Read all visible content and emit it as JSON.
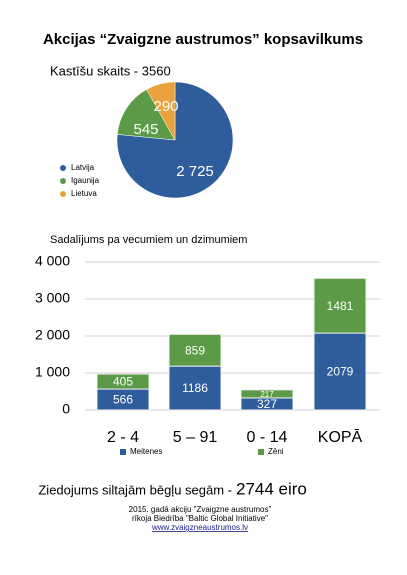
{
  "title": "Akcijas “Zvaigzne austrumos” kopsavilkums",
  "chart_data": [
    {
      "type": "pie",
      "title": "Kastīšu skaits - 3560",
      "categories": [
        "Latvija",
        "Igaunija",
        "Lietuva"
      ],
      "values": [
        2725,
        545,
        290
      ],
      "value_labels": [
        "2 725",
        "545",
        "290"
      ],
      "colors": [
        "#2f5d9b",
        "#5b9b47",
        "#e9a23b"
      ]
    },
    {
      "type": "bar",
      "stacked": true,
      "title": "Sadalījums pa vecumiem un dzimumiem",
      "categories": [
        "2 - 4",
        "5 – 91",
        "0 - 14",
        "KOPĀ"
      ],
      "series": [
        {
          "name": "Meitenes",
          "color": "#2f5d9b",
          "values": [
            566,
            1186,
            327,
            2079
          ]
        },
        {
          "name": "Zēni",
          "color": "#5b9b47",
          "values": [
            405,
            859,
            217,
            1481
          ]
        }
      ],
      "ylim": [
        0,
        4000
      ],
      "yticks": [
        0,
        {
          "value": 1000,
          "label": "1 000"
        },
        {
          "value": 2000,
          "label": "2 000"
        },
        {
          "value": 3000,
          "label": "3 000"
        },
        {
          "value": 4000,
          "label": "4 000"
        }
      ],
      "grid": true,
      "legend": "bottom"
    }
  ],
  "footer": {
    "donation_label": "Ziedojums siltajām bēgļu segām -",
    "donation_amount": "2744 eiro",
    "credits": [
      "2015. gadā akciju \"Zvaigzne austrumos\"",
      "rīkoja Biedrība \"Baltic Global Initiative\"",
      "www.zvaigzneaustrumos.lv"
    ]
  }
}
